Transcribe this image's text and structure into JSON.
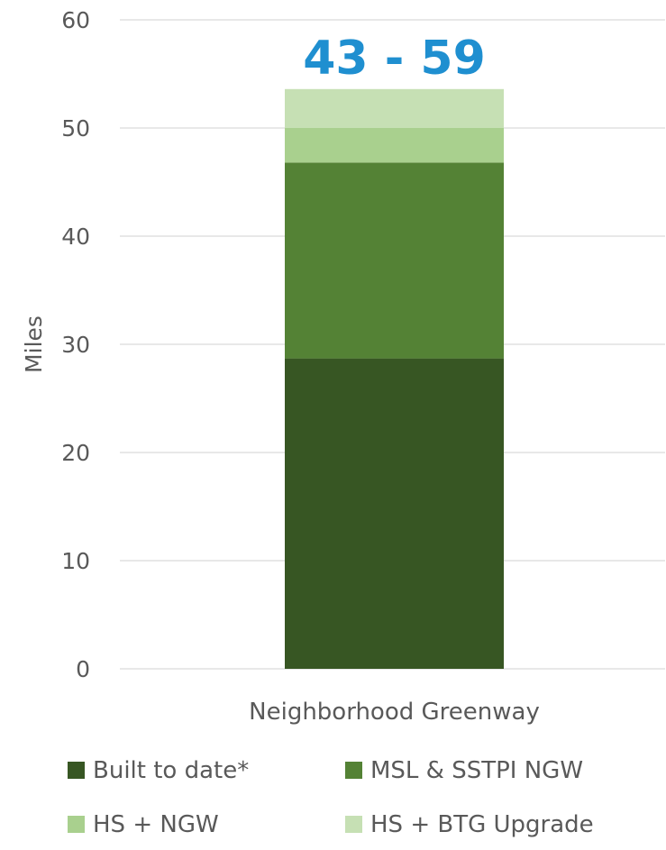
{
  "chart_data": {
    "type": "bar",
    "stacked": true,
    "categories": [
      "Neighborhood Greenway"
    ],
    "series": [
      {
        "name": "Built to date*",
        "values": [
          28.7
        ],
        "color": "#375623"
      },
      {
        "name": "MSL & SSTPI NGW",
        "values": [
          18.1
        ],
        "color": "#548235"
      },
      {
        "name": "HS + NGW",
        "values": [
          3.2
        ],
        "color": "#a9d08e"
      },
      {
        "name": "HS + BTG Upgrade",
        "values": [
          3.6
        ],
        "color": "#c6e0b4"
      }
    ],
    "annotation": {
      "text": "43 - 59",
      "color": "#1f8fd0"
    },
    "title": "",
    "xlabel": "",
    "ylabel": "Miles",
    "ylim": [
      0,
      60
    ],
    "yticks": [
      0,
      10,
      20,
      30,
      40,
      50,
      60
    ],
    "grid": true,
    "legend_position": "bottom"
  }
}
